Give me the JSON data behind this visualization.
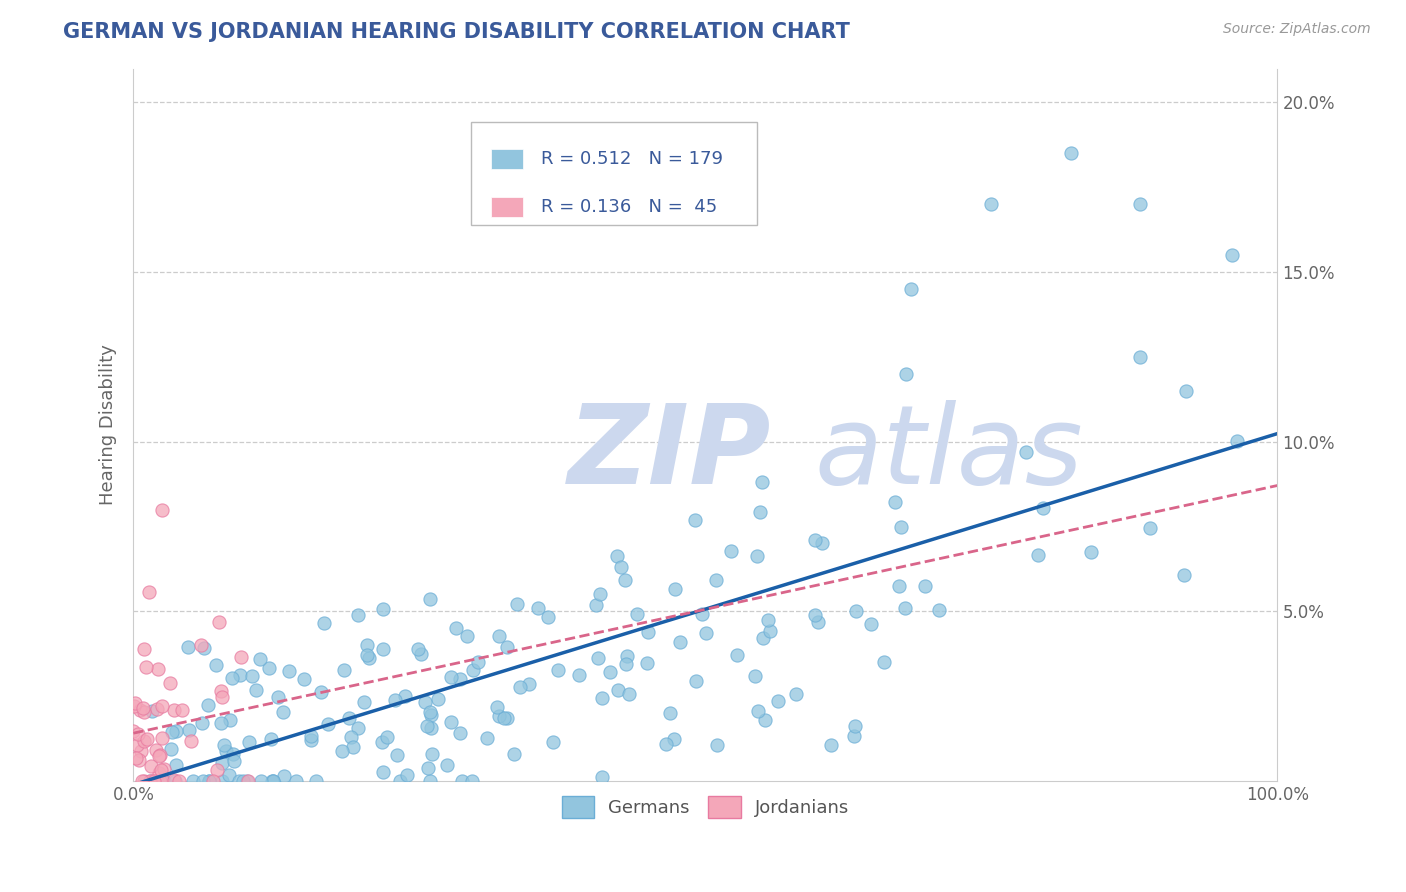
{
  "title": "GERMAN VS JORDANIAN HEARING DISABILITY CORRELATION CHART",
  "source": "Source: ZipAtlas.com",
  "ylabel": "Hearing Disability",
  "legend_R": [
    0.512,
    0.136
  ],
  "legend_N": [
    179,
    45
  ],
  "blue_color": "#92c5de",
  "pink_color": "#f4a7b9",
  "blue_edge": "#6baed6",
  "pink_edge": "#e87aa0",
  "trend_blue": "#1a5fa8",
  "trend_pink": "#d9658a",
  "watermark_zip": "ZIP",
  "watermark_atlas": "atlas",
  "watermark_color": "#ccd8ee",
  "title_color": "#3a5a9a",
  "legend_text_color": "#3a5a9a",
  "bg_color": "#ffffff",
  "grid_color": "#cccccc",
  "xlim": [
    0,
    1.0
  ],
  "ylim": [
    0,
    0.21
  ],
  "yticks": [
    0.0,
    0.05,
    0.1,
    0.15,
    0.2
  ],
  "yticklabels_right": [
    "",
    "5.0%",
    "10.0%",
    "15.0%",
    "20.0%"
  ]
}
